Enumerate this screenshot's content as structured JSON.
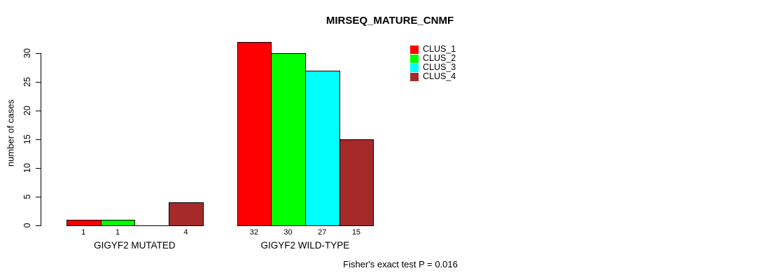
{
  "chart_data": {
    "type": "bar",
    "title": "MIRSEQ_MATURE_CNMF",
    "ylabel": "number of cases",
    "categories": [
      "GIGYF2 MUTATED",
      "GIGYF2 WILD-TYPE"
    ],
    "series": [
      {
        "name": "CLUS_1",
        "color": "#FF0000",
        "values": [
          1,
          32
        ]
      },
      {
        "name": "CLUS_2",
        "color": "#00FF00",
        "values": [
          1,
          30
        ]
      },
      {
        "name": "CLUS_3",
        "color": "#00FFFF",
        "values": [
          0,
          27
        ]
      },
      {
        "name": "CLUS_4",
        "color": "#A52A2A",
        "values": [
          4,
          15
        ]
      }
    ],
    "bar_value_labels": [
      [
        "1",
        "1",
        "",
        "4"
      ],
      [
        "32",
        "30",
        "27",
        "15"
      ]
    ],
    "yticks": [
      0,
      5,
      10,
      15,
      20,
      25,
      30
    ],
    "ylim": [
      0,
      32
    ],
    "grid": false,
    "legend_position": "top-right",
    "bar_border_color": "#000000",
    "annotation": "Fisher's exact test P = 0.016"
  }
}
